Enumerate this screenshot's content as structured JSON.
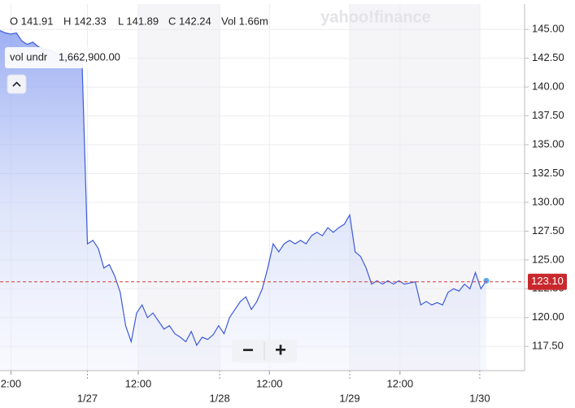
{
  "chart_data": {
    "type": "line",
    "watermark": "yahoo!finance",
    "ohlc": [
      "O 141.91",
      "H 142.33",
      "L 141.89",
      "C 142.24",
      "Vol 1.66m"
    ],
    "tooltip": {
      "label": "vol undr",
      "value": "1,662,900.00"
    },
    "zoom_out": "−",
    "zoom_in": "+",
    "xlim": [
      0,
      96
    ],
    "ylim": [
      115.4,
      147.2
    ],
    "xticks": [
      {
        "value": 2,
        "label": "2:00"
      },
      {
        "value": 16,
        "label": "1/27"
      },
      {
        "value": 25.3,
        "label": "12:00"
      },
      {
        "value": 40.2,
        "label": "1/28"
      },
      {
        "value": 49.3,
        "label": "12:00"
      },
      {
        "value": 64,
        "label": "1/29"
      },
      {
        "value": 73.2,
        "label": "12:00"
      },
      {
        "value": 87.8,
        "label": "1/30"
      }
    ],
    "yticks": [
      {
        "value": 117.5,
        "label": "117.50"
      },
      {
        "value": 120,
        "label": "120.00"
      },
      {
        "value": 122.5,
        "label": "122.50"
      },
      {
        "value": 125,
        "label": "125.00"
      },
      {
        "value": 127.5,
        "label": "127.50"
      },
      {
        "value": 130,
        "label": "130.00"
      },
      {
        "value": 132.5,
        "label": "132.50"
      },
      {
        "value": 135,
        "label": "135.00"
      },
      {
        "value": 137.5,
        "label": "137.50"
      },
      {
        "value": 140,
        "label": "140.00"
      },
      {
        "value": 142.5,
        "label": "142.50"
      },
      {
        "value": 145,
        "label": "145.00"
      }
    ],
    "grid": true,
    "last_price": {
      "value": 123.1,
      "label": "123.10"
    },
    "series": [
      {
        "color": "#3d5bd9",
        "x": [
          0,
          1,
          2,
          3,
          4,
          5,
          6,
          7,
          8,
          9,
          10,
          11,
          12,
          13,
          14,
          15,
          16,
          17,
          18,
          19,
          20,
          21,
          22,
          23,
          24,
          25,
          26,
          27,
          28,
          29,
          30,
          31,
          32,
          33,
          34,
          35,
          36,
          37,
          38,
          39,
          40,
          41,
          42,
          43,
          44,
          45,
          46,
          47,
          48,
          49,
          50,
          51,
          52,
          53,
          54,
          55,
          56,
          57,
          58,
          59,
          60,
          61,
          62,
          63,
          64,
          65,
          66,
          67,
          68,
          69,
          70,
          71,
          72,
          73,
          74,
          75,
          76,
          77,
          78,
          79,
          80,
          81,
          82,
          83,
          84,
          85,
          86,
          87,
          88,
          89
        ],
        "values": [
          144.9,
          144.7,
          144.6,
          144.7,
          144.0,
          143.7,
          143.9,
          143.5,
          143.3,
          143.2,
          143.0,
          142.8,
          142.6,
          142.6,
          142.5,
          142.4,
          126.4,
          126.7,
          126.0,
          124.3,
          124.6,
          123.6,
          122.2,
          119.3,
          117.9,
          120.4,
          121.1,
          120.0,
          120.4,
          119.7,
          119.0,
          119.3,
          118.6,
          118.3,
          117.9,
          118.8,
          117.6,
          118.3,
          118.1,
          118.5,
          119.3,
          118.6,
          120.0,
          120.7,
          121.4,
          121.8,
          120.7,
          121.4,
          122.5,
          124.3,
          126.4,
          125.7,
          126.4,
          126.7,
          126.4,
          126.7,
          126.4,
          127.1,
          127.4,
          127.1,
          127.8,
          127.4,
          127.8,
          128.1,
          128.9,
          125.7,
          125.3,
          124.3,
          122.9,
          123.2,
          122.9,
          123.2,
          122.9,
          123.2,
          122.9,
          123.0,
          123.1,
          121.1,
          121.4,
          121.1,
          121.3,
          121.1,
          122.2,
          122.5,
          122.3,
          122.9,
          122.5,
          123.9,
          122.5,
          123.2
        ]
      }
    ]
  }
}
